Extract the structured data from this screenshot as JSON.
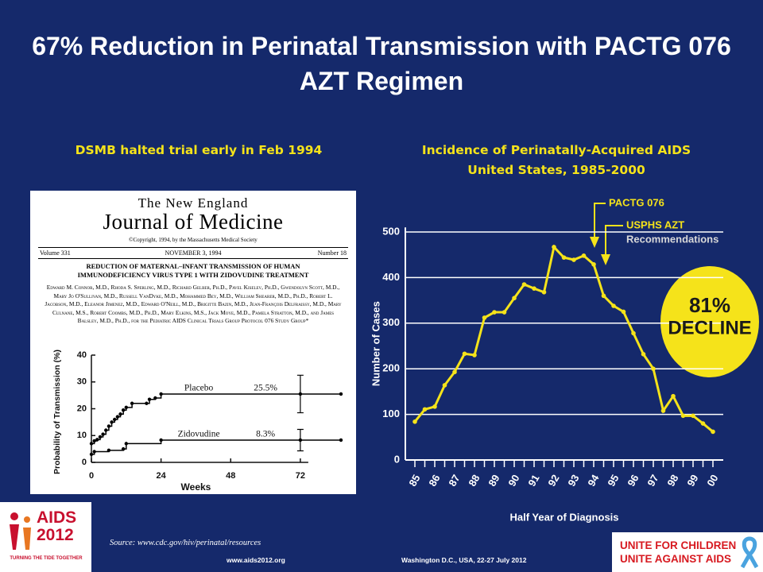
{
  "slide": {
    "title": "67% Reduction in Perinatal Transmission with PACTG 076 AZT Regimen",
    "left_heading": "DSMB halted trial early in Feb 1994",
    "source": "Source: www.cdc.gov/hiv/perinatal/resources",
    "footer_url": "www.aids2012.org",
    "footer_event": "Washington D.C., USA, 22-27 July 2012"
  },
  "article": {
    "journal_line1": "The New England",
    "journal_line2": "Journal of Medicine",
    "copyright": "©Copyright, 1994, by the Massachusetts Medical Society",
    "volume": "Volume 331",
    "date": "NOVEMBER 3, 1994",
    "number": "Number 18",
    "headline": "REDUCTION OF MATERNAL–INFANT TRANSMISSION OF HUMAN IMMUNODEFICIENCY VIRUS TYPE 1 WITH ZIDOVUDINE TREATMENT",
    "authors": "Edward M. Connor, M.D., Rhoda S. Sperling, M.D., Richard Gelber, Ph.D., Pavel Kiselev, Ph.D., Gwendolyn Scott, M.D., Mary Jo O'Sullivan, M.D., Russell VanDyke, M.D., Mohammed Bey, M.D., William Shearer, M.D., Ph.D., Robert L. Jacobson, M.D., Eleanor Jimenez, M.D., Edward O'Neill, M.D., Brigitte Bazin, M.D., Jean-François Delfraissy, M.D., Mary Culnane, M.S., Robert Coombs, M.D., Ph.D., Mary Elkins, M.S., Jack Moye, M.D., Pamela Stratton, M.D., and James Balsley, M.D., Ph.D., for the Pediatric AIDS Clinical Trials Group Protocol 076 Study Group*"
  },
  "logos": {
    "aids": "AIDS",
    "year": "2012",
    "tagline": "TURNING THE TIDE TOGETHER",
    "unite_children": "UNITE FOR CHILDREN",
    "unite_aids": "UNITE AGAINST AIDS"
  },
  "chart_data": [
    {
      "type": "step",
      "x_label": "Weeks",
      "y_label": "Probability of Transmission (%)",
      "xlim": [
        0,
        86
      ],
      "xticks": [
        0,
        24,
        48,
        72
      ],
      "ylim": [
        0,
        40
      ],
      "yticks": [
        0,
        10,
        20,
        30,
        40
      ],
      "series": [
        {
          "name": "Placebo",
          "color": "#000000",
          "x": [
            0,
            1,
            2,
            3,
            4,
            5,
            6,
            7,
            8,
            9,
            10,
            11,
            12,
            14,
            19,
            20,
            22,
            24,
            72,
            86
          ],
          "values": [
            7,
            8,
            8.5,
            9.5,
            10.5,
            12,
            13.5,
            15,
            16,
            17,
            18,
            19.5,
            20.5,
            22,
            22,
            23.5,
            24,
            25.5,
            25.5,
            25.5
          ],
          "errors": [
            null,
            null,
            null,
            null,
            null,
            null,
            null,
            null,
            null,
            null,
            null,
            null,
            null,
            null,
            null,
            null,
            null,
            null,
            7,
            null
          ],
          "end_label": "25.5%"
        },
        {
          "name": "Zidovudine",
          "color": "#000000",
          "x": [
            0,
            1,
            6,
            11,
            12,
            24,
            72,
            86
          ],
          "values": [
            3,
            4,
            4.5,
            5,
            7,
            8.3,
            8.3,
            8.3
          ],
          "errors": [
            null,
            null,
            null,
            null,
            null,
            null,
            4,
            null
          ],
          "end_label": "8.3%"
        }
      ]
    },
    {
      "type": "line",
      "title": "Incidence of Perinatally-Acquired AIDS",
      "subtitle": "United States, 1985-2000",
      "x_label": "Half Year of Diagnosis",
      "y_label": "Number of Cases",
      "categories": [
        "85",
        null,
        "86",
        null,
        "87",
        null,
        "88",
        null,
        "89",
        null,
        "90",
        null,
        "91",
        null,
        "92",
        null,
        "93",
        null,
        "94",
        null,
        "95",
        null,
        "96",
        null,
        "97",
        null,
        "98",
        null,
        "99",
        null,
        "00"
      ],
      "values": [
        84,
        111,
        117,
        164,
        193,
        233,
        230,
        312,
        324,
        324,
        355,
        385,
        376,
        368,
        467,
        444,
        439,
        448,
        429,
        360,
        338,
        325,
        278,
        232,
        200,
        108,
        140,
        97,
        97,
        80,
        62
      ],
      "color": "#f5e31a",
      "ylim": [
        0,
        510
      ],
      "yticks": [
        0,
        100,
        200,
        300,
        400,
        500
      ],
      "grid": true,
      "annotations": {
        "pactg": "PACTG 076",
        "usphs": "USPHS AZT",
        "recommendations": "Recommendations",
        "percent": "81%",
        "decline": "DECLINE"
      }
    }
  ]
}
